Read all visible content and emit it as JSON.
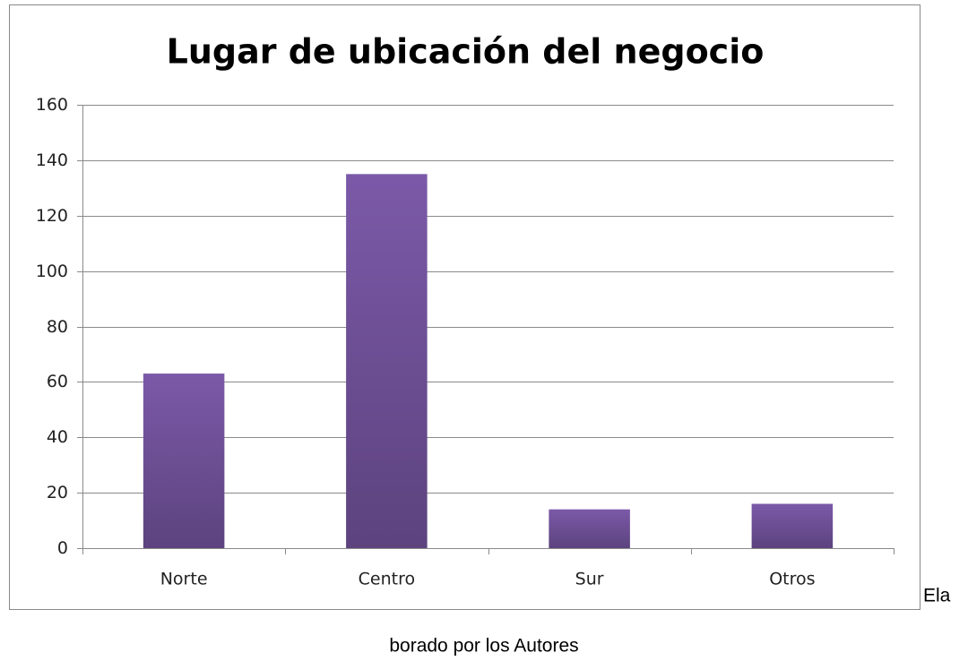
{
  "chart_data": {
    "type": "bar",
    "title": "Lugar de ubicación del negocio",
    "categories": [
      "Norte",
      "Centro",
      "Sur",
      "Otros"
    ],
    "values": [
      63,
      135,
      14,
      16
    ],
    "color": "#7b59a8",
    "ylim": [
      0,
      160
    ],
    "yticks": [
      0,
      20,
      40,
      60,
      80,
      100,
      120,
      140,
      160
    ],
    "grid": true
  },
  "caption": [
    "Ela",
    "borado por los Autores"
  ]
}
